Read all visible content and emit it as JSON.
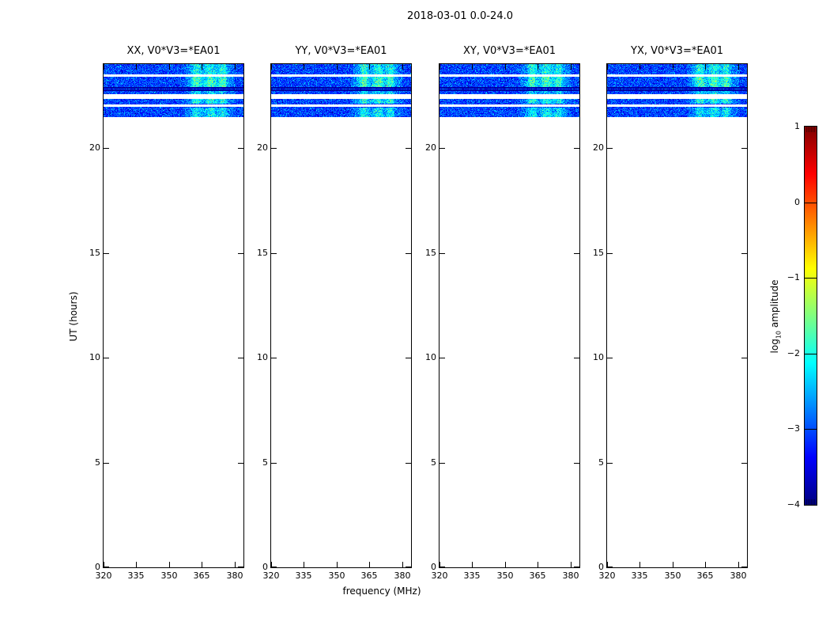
{
  "figure": {
    "title": "2018-03-01 0.0-24.0",
    "xlabel": "frequency (MHz)",
    "ylabel": "UT (hours)",
    "colorbar_label": {
      "prefix": "log",
      "sub": "10",
      "suffix": " amplitude"
    },
    "background_color": "#ffffff",
    "axis_color": "#000000"
  },
  "chart_data": {
    "type": "heatmap",
    "title": "2018-03-01 0.0-24.0",
    "xlabel": "frequency (MHz)",
    "ylabel": "UT (hours)",
    "panels": [
      {
        "title": "XX, V0*V3=*EA01"
      },
      {
        "title": "YY, V0*V3=*EA01"
      },
      {
        "title": "XY, V0*V3=*EA01"
      },
      {
        "title": "YX, V0*V3=*EA01"
      }
    ],
    "x_range": [
      320,
      384
    ],
    "x_ticks": [
      320,
      335,
      350,
      365,
      380
    ],
    "y_range": [
      0,
      24
    ],
    "y_ticks": [
      0,
      5,
      10,
      15,
      20
    ],
    "grid": false,
    "colormap": "jet",
    "colorbar": {
      "label": "log10 amplitude",
      "range": [
        -4,
        1
      ],
      "ticks": [
        1,
        0,
        -1,
        -2,
        -3,
        -4
      ],
      "position": "right"
    },
    "spectrogram": {
      "observed_time_range_hours": [
        21.47,
        24.0
      ],
      "noise_mean_log10": -3.05,
      "noise_sigma_log10": 0.3,
      "masked_time_bands_hours": [
        [
          23.4,
          23.51
        ],
        [
          22.34,
          22.57
        ],
        [
          21.96,
          22.08
        ]
      ],
      "flagged_dark_time_bands_hours": [
        [
          22.83,
          22.91
        ],
        [
          22.72,
          22.79
        ]
      ],
      "rfi_bands": {
        "freq_broad_range_mhz": [
          356,
          381
        ],
        "freq_peaks_mhz": [
          362.5,
          369.0,
          374.5
        ],
        "peak_widths_mhz": [
          2.2,
          2.6,
          1.8
        ],
        "time_bands_hours": [
          [
            23.51,
            24.0
          ],
          [
            22.91,
            23.4
          ],
          [
            22.57,
            22.72
          ],
          [
            22.11,
            22.34
          ],
          [
            21.47,
            21.92
          ]
        ],
        "time_band_boost_log10": [
          0.85,
          1.05,
          0.6,
          0.9,
          0.75
        ]
      }
    }
  }
}
